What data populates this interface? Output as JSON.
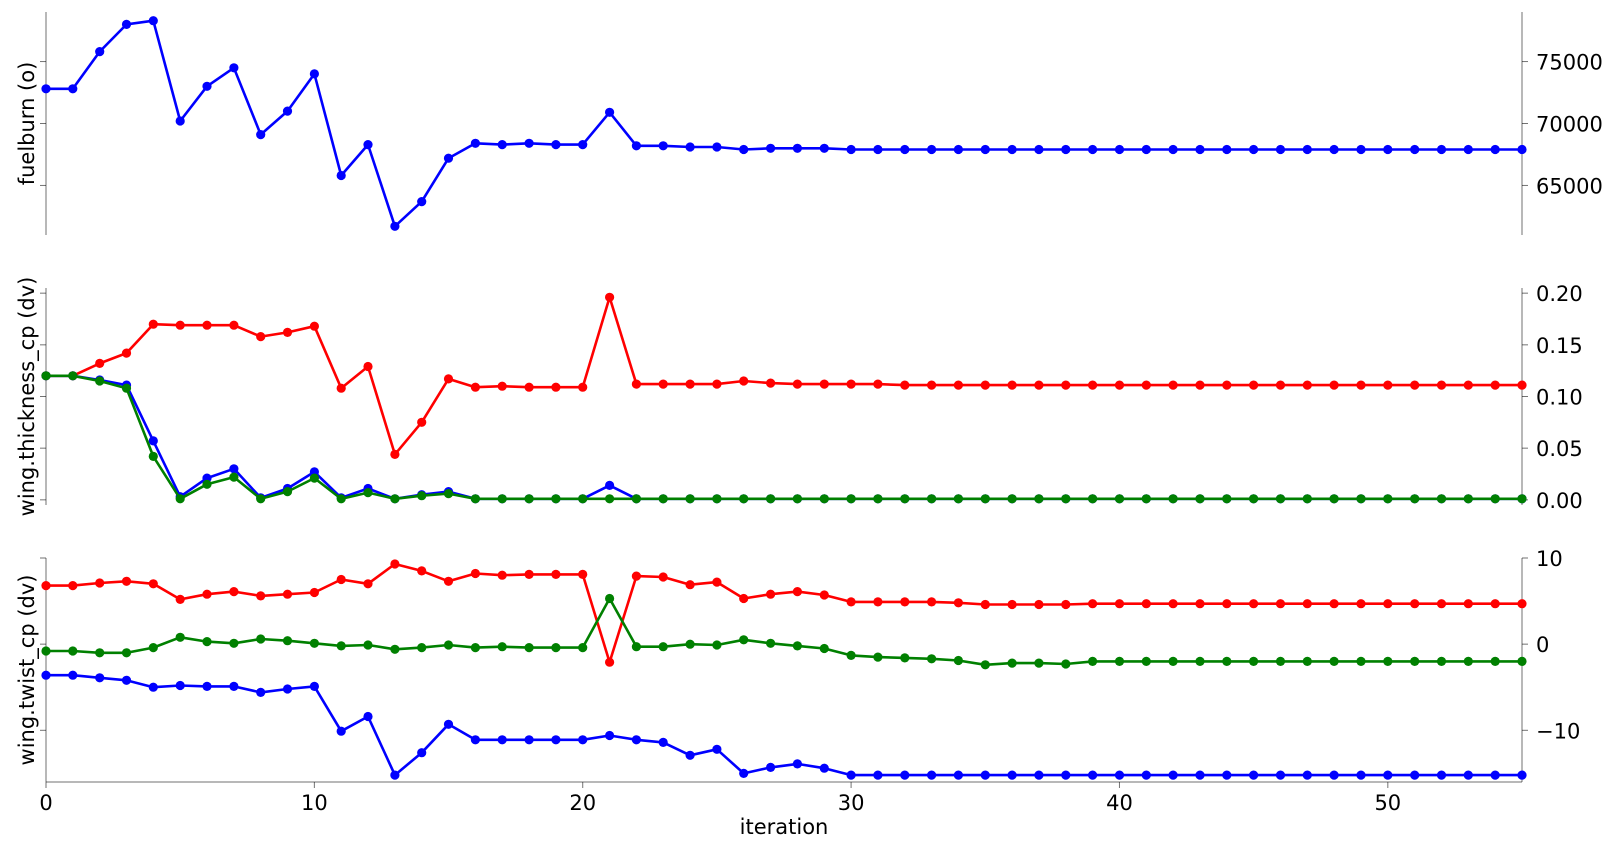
{
  "chart_data": {
    "type": "line",
    "x": [
      0,
      1,
      2,
      3,
      4,
      5,
      6,
      7,
      8,
      9,
      10,
      11,
      12,
      13,
      14,
      15,
      16,
      17,
      18,
      19,
      20,
      21,
      22,
      23,
      24,
      25,
      26,
      27,
      28,
      29,
      30,
      31,
      32,
      33,
      34,
      35,
      36,
      37,
      38,
      39,
      40,
      41,
      42,
      43,
      44,
      45,
      46,
      47,
      48,
      49,
      50,
      51,
      52,
      53,
      54,
      55
    ],
    "xlabel": "iteration",
    "xlim": [
      0,
      55
    ],
    "x_ticks": [
      0,
      10,
      20,
      30,
      40,
      50
    ],
    "x_tick_labels": [
      "0",
      "10",
      "20",
      "30",
      "40",
      "50"
    ],
    "grid": false,
    "panels": [
      {
        "ylabel": "fuelburn (o)",
        "ylim": [
          61000,
          79000
        ],
        "y_ticks": [
          65000,
          70000,
          75000
        ],
        "y_tick_labels": [
          "65000",
          "70000",
          "75000"
        ],
        "series": [
          {
            "color": "#0000ff",
            "values": [
              72800,
              72800,
              75800,
              78000,
              78300,
              70200,
              73000,
              74500,
              69100,
              71000,
              74000,
              65800,
              68300,
              61700,
              63700,
              67200,
              68400,
              68300,
              68400,
              68300,
              68300,
              70900,
              68200,
              68200,
              68100,
              68100,
              67900,
              68000,
              68000,
              68000,
              67900,
              67900,
              67900,
              67900,
              67900,
              67900,
              67900,
              67900,
              67900,
              67900,
              67900,
              67900,
              67900,
              67900,
              67900,
              67900,
              67900,
              67900,
              67900,
              67900,
              67900,
              67900,
              67900,
              67900,
              67900,
              67900
            ]
          }
        ]
      },
      {
        "ylabel": "wing.thickness_cp (dv)",
        "ylim": [
          -0.005,
          0.205
        ],
        "y_ticks": [
          0.0,
          0.05,
          0.1,
          0.15,
          0.2
        ],
        "y_tick_labels": [
          "0.00",
          "0.05",
          "0.10",
          "0.15",
          "0.20"
        ],
        "series": [
          {
            "color": "#ff0000",
            "values": [
              0.12,
              0.12,
              0.132,
              0.142,
              0.17,
              0.169,
              0.169,
              0.169,
              0.158,
              0.162,
              0.168,
              0.108,
              0.129,
              0.044,
              0.075,
              0.117,
              0.109,
              0.11,
              0.109,
              0.109,
              0.109,
              0.196,
              0.112,
              0.112,
              0.112,
              0.112,
              0.115,
              0.113,
              0.112,
              0.112,
              0.112,
              0.112,
              0.111,
              0.111,
              0.111,
              0.111,
              0.111,
              0.111,
              0.111,
              0.111,
              0.111,
              0.111,
              0.111,
              0.111,
              0.111,
              0.111,
              0.111,
              0.111,
              0.111,
              0.111,
              0.111,
              0.111,
              0.111,
              0.111,
              0.111,
              0.111
            ]
          },
          {
            "color": "#0000ff",
            "values": [
              0.12,
              0.12,
              0.116,
              0.111,
              0.057,
              0.003,
              0.021,
              0.03,
              0.002,
              0.011,
              0.027,
              0.002,
              0.011,
              0.001,
              0.005,
              0.008,
              0.001,
              0.001,
              0.001,
              0.001,
              0.001,
              0.014,
              0.001,
              0.001,
              0.001,
              0.001,
              0.001,
              0.001,
              0.001,
              0.001,
              0.001,
              0.001,
              0.001,
              0.001,
              0.001,
              0.001,
              0.001,
              0.001,
              0.001,
              0.001,
              0.001,
              0.001,
              0.001,
              0.001,
              0.001,
              0.001,
              0.001,
              0.001,
              0.001,
              0.001,
              0.001,
              0.001,
              0.001,
              0.001,
              0.001,
              0.001
            ]
          },
          {
            "color": "#008000",
            "values": [
              0.12,
              0.12,
              0.115,
              0.108,
              0.042,
              0.001,
              0.015,
              0.022,
              0.001,
              0.008,
              0.021,
              0.001,
              0.007,
              0.001,
              0.004,
              0.006,
              0.001,
              0.001,
              0.001,
              0.001,
              0.001,
              0.001,
              0.001,
              0.001,
              0.001,
              0.001,
              0.001,
              0.001,
              0.001,
              0.001,
              0.001,
              0.001,
              0.001,
              0.001,
              0.001,
              0.001,
              0.001,
              0.001,
              0.001,
              0.001,
              0.001,
              0.001,
              0.001,
              0.001,
              0.001,
              0.001,
              0.001,
              0.001,
              0.001,
              0.001,
              0.001,
              0.001,
              0.001,
              0.001,
              0.001,
              0.001
            ]
          }
        ]
      },
      {
        "ylabel": "wing.twist_cp (dv)",
        "ylim": [
          -16,
          10
        ],
        "y_ticks": [
          -10,
          0,
          10
        ],
        "y_tick_labels": [
          "−10",
          "0",
          "10"
        ],
        "series": [
          {
            "color": "#ff0000",
            "values": [
              6.8,
              6.8,
              7.1,
              7.3,
              7.0,
              5.2,
              5.8,
              6.1,
              5.6,
              5.8,
              6.0,
              7.5,
              7.0,
              9.3,
              8.5,
              7.3,
              8.2,
              8.0,
              8.1,
              8.1,
              8.1,
              -2.1,
              7.9,
              7.8,
              6.9,
              7.2,
              5.3,
              5.8,
              6.1,
              5.7,
              4.9,
              4.9,
              4.9,
              4.9,
              4.8,
              4.6,
              4.6,
              4.6,
              4.6,
              4.7,
              4.7,
              4.7,
              4.7,
              4.7,
              4.7,
              4.7,
              4.7,
              4.7,
              4.7,
              4.7,
              4.7,
              4.7,
              4.7,
              4.7,
              4.7,
              4.7
            ]
          },
          {
            "color": "#008000",
            "values": [
              -0.8,
              -0.8,
              -1.0,
              -1.0,
              -0.4,
              0.8,
              0.3,
              0.1,
              0.6,
              0.4,
              0.1,
              -0.2,
              -0.1,
              -0.6,
              -0.4,
              -0.1,
              -0.4,
              -0.3,
              -0.4,
              -0.4,
              -0.4,
              5.3,
              -0.3,
              -0.3,
              0.0,
              -0.1,
              0.5,
              0.1,
              -0.2,
              -0.5,
              -1.3,
              -1.5,
              -1.6,
              -1.7,
              -1.9,
              -2.4,
              -2.2,
              -2.2,
              -2.3,
              -2.0,
              -2.0,
              -2.0,
              -2.0,
              -2.0,
              -2.0,
              -2.0,
              -2.0,
              -2.0,
              -2.0,
              -2.0,
              -2.0,
              -2.0,
              -2.0,
              -2.0,
              -2.0,
              -2.0
            ]
          },
          {
            "color": "#0000ff",
            "values": [
              -3.6,
              -3.6,
              -3.9,
              -4.2,
              -5.0,
              -4.8,
              -4.9,
              -4.9,
              -5.6,
              -5.2,
              -4.9,
              -10.1,
              -8.4,
              -15.2,
              -12.6,
              -9.3,
              -11.1,
              -11.1,
              -11.1,
              -11.1,
              -11.1,
              -10.6,
              -11.1,
              -11.4,
              -12.9,
              -12.2,
              -15.0,
              -14.3,
              -13.9,
              -14.4,
              -15.2,
              -15.2,
              -15.2,
              -15.2,
              -15.2,
              -15.2,
              -15.2,
              -15.2,
              -15.2,
              -15.2,
              -15.2,
              -15.2,
              -15.2,
              -15.2,
              -15.2,
              -15.2,
              -15.2,
              -15.2,
              -15.2,
              -15.2,
              -15.2,
              -15.2,
              -15.2,
              -15.2,
              -15.2,
              -15.2
            ]
          }
        ]
      }
    ]
  }
}
